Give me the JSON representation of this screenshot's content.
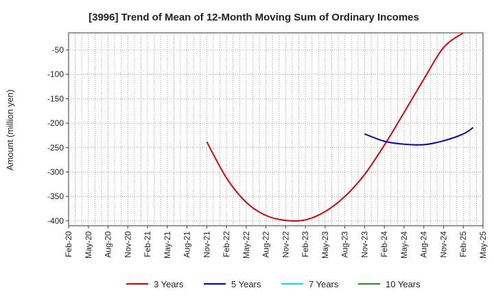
{
  "chart_data": {
    "type": "line",
    "title": "[3996]  Trend of Mean of 12-Month Moving Sum of Ordinary Incomes",
    "xlabel": "",
    "ylabel": "Amount (million yen)",
    "ylim": [
      -410,
      -15
    ],
    "yticks": [
      -50,
      -100,
      -150,
      -200,
      -250,
      -300,
      -350,
      -400
    ],
    "categories": [
      "Feb-20",
      "May-20",
      "Aug-20",
      "Nov-20",
      "Feb-21",
      "May-21",
      "Aug-21",
      "Nov-21",
      "Feb-22",
      "May-22",
      "Aug-22",
      "Nov-22",
      "Feb-23",
      "May-23",
      "Aug-23",
      "Nov-23",
      "Feb-24",
      "May-24",
      "Aug-24",
      "Nov-24",
      "Feb-25",
      "May-25"
    ],
    "grid": true,
    "legend_position": "bottom",
    "series": [
      {
        "name": "3 Years",
        "color": "#e00000",
        "points": [
          [
            7,
            -238
          ],
          [
            8,
            -312
          ],
          [
            9,
            -362
          ],
          [
            10,
            -389
          ],
          [
            11,
            -399
          ],
          [
            12,
            -398
          ],
          [
            13,
            -381
          ],
          [
            14,
            -350
          ],
          [
            15,
            -305
          ],
          [
            16,
            -245
          ],
          [
            17,
            -178
          ],
          [
            18,
            -110
          ],
          [
            19,
            -45
          ],
          [
            20,
            -15
          ]
        ]
      },
      {
        "name": "5 Years",
        "color": "#0000cc",
        "points": [
          [
            15,
            -222
          ],
          [
            16,
            -237
          ],
          [
            17,
            -243
          ],
          [
            18,
            -244
          ],
          [
            19,
            -236
          ],
          [
            20,
            -222
          ],
          [
            20.5,
            -209
          ]
        ]
      },
      {
        "name": "7 Years",
        "color": "#00e5ee",
        "points": []
      },
      {
        "name": "10 Years",
        "color": "#228b22",
        "points": []
      }
    ]
  }
}
